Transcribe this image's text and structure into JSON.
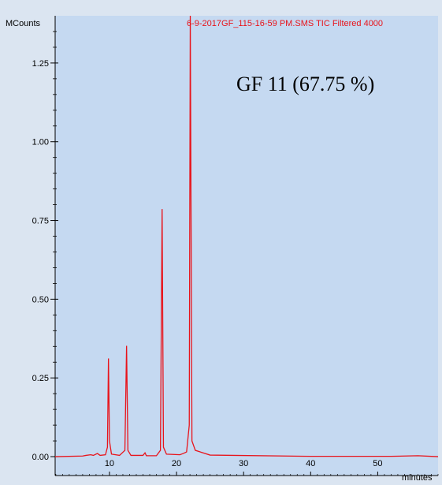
{
  "chart_data": {
    "type": "line",
    "title": "6-9-2017GF_115-16-59 PM.SMS TIC Filtered 4000",
    "annotation": "GF 11 (67.75 %)",
    "ylabel": "MCounts",
    "xlabel": "minutes",
    "xlim": [
      1.9,
      59.0
    ],
    "ylim": [
      -0.06,
      1.4
    ],
    "xticks": [
      10,
      20,
      30,
      40,
      50
    ],
    "yticks": [
      0.0,
      0.25,
      0.5,
      0.75,
      1.0,
      1.25
    ],
    "ytick_labels": [
      "0.00",
      "0.25",
      "0.50",
      "0.75",
      "1.00",
      "1.25"
    ],
    "grid": false,
    "colors": {
      "plot_background": "#c5d9f1",
      "page_background": "#dbe5f1",
      "trace": "#e8141b",
      "title": "#e8141b"
    },
    "series": [
      {
        "values": [
          [
            1.9,
            0.0
          ],
          [
            6.0,
            0.002
          ],
          [
            6.5,
            0.004
          ],
          [
            7.2,
            0.006
          ],
          [
            7.6,
            0.004
          ],
          [
            8.2,
            0.01
          ],
          [
            8.6,
            0.004
          ],
          [
            9.4,
            0.006
          ],
          [
            9.7,
            0.03
          ],
          [
            9.85,
            0.312
          ],
          [
            10.0,
            0.05
          ],
          [
            10.3,
            0.008
          ],
          [
            11.5,
            0.004
          ],
          [
            12.3,
            0.02
          ],
          [
            12.55,
            0.352
          ],
          [
            12.75,
            0.02
          ],
          [
            13.2,
            0.004
          ],
          [
            15.0,
            0.004
          ],
          [
            15.3,
            0.012
          ],
          [
            15.5,
            0.003
          ],
          [
            17.0,
            0.003
          ],
          [
            17.6,
            0.02
          ],
          [
            17.85,
            0.786
          ],
          [
            18.05,
            0.03
          ],
          [
            18.5,
            0.008
          ],
          [
            20.5,
            0.006
          ],
          [
            21.0,
            0.01
          ],
          [
            21.5,
            0.015
          ],
          [
            21.9,
            0.1
          ],
          [
            22.05,
            1.4
          ],
          [
            22.3,
            0.05
          ],
          [
            22.8,
            0.02
          ],
          [
            25.0,
            0.005
          ],
          [
            40.0,
            0.001
          ],
          [
            52.0,
            0.001
          ],
          [
            56.0,
            0.003
          ],
          [
            59.0,
            0.0
          ]
        ]
      }
    ]
  }
}
